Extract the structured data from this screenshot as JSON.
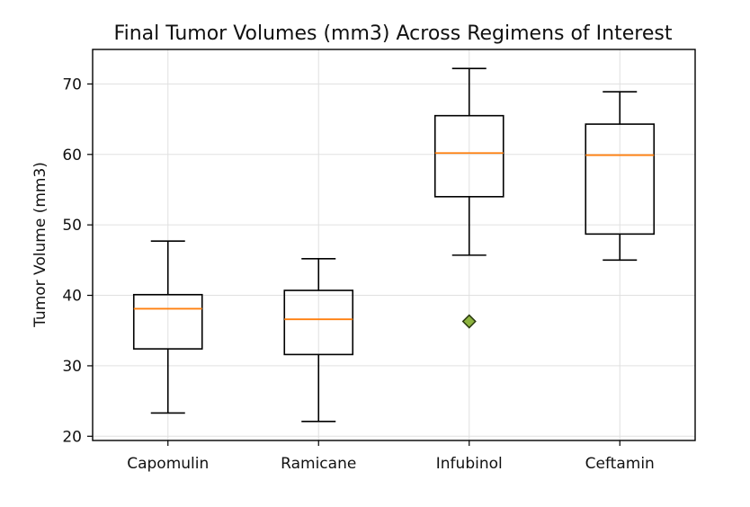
{
  "chart_data": {
    "type": "box",
    "title": "Final Tumor Volumes (mm3) Across Regimens of Interest",
    "xlabel": "",
    "ylabel": "Tumor Volume (mm3)",
    "ylim": [
      19.4,
      74.9
    ],
    "yticks": [
      20,
      30,
      40,
      50,
      60,
      70
    ],
    "grid": true,
    "categories": [
      "Capomulin",
      "Ramicane",
      "Infubinol",
      "Ceftamin"
    ],
    "boxes": [
      {
        "name": "Capomulin",
        "whisker_low": 23.3,
        "q1": 32.4,
        "median": 38.1,
        "q3": 40.1,
        "whisker_high": 47.7,
        "outliers": []
      },
      {
        "name": "Ramicane",
        "whisker_low": 22.1,
        "q1": 31.6,
        "median": 36.6,
        "q3": 40.7,
        "whisker_high": 45.2,
        "outliers": []
      },
      {
        "name": "Infubinol",
        "whisker_low": 45.7,
        "q1": 54.0,
        "median": 60.2,
        "q3": 65.5,
        "whisker_high": 72.2,
        "outliers": [
          36.3
        ]
      },
      {
        "name": "Ceftamin",
        "whisker_low": 45.0,
        "q1": 48.7,
        "median": 59.9,
        "q3": 64.3,
        "whisker_high": 68.9,
        "outliers": []
      }
    ],
    "colors": {
      "box": "#000000",
      "median": "#ff7f0e",
      "outlier_fill": "#8db33f",
      "outlier_edge": "#2a3a10",
      "grid": "#e0e0e0"
    }
  }
}
